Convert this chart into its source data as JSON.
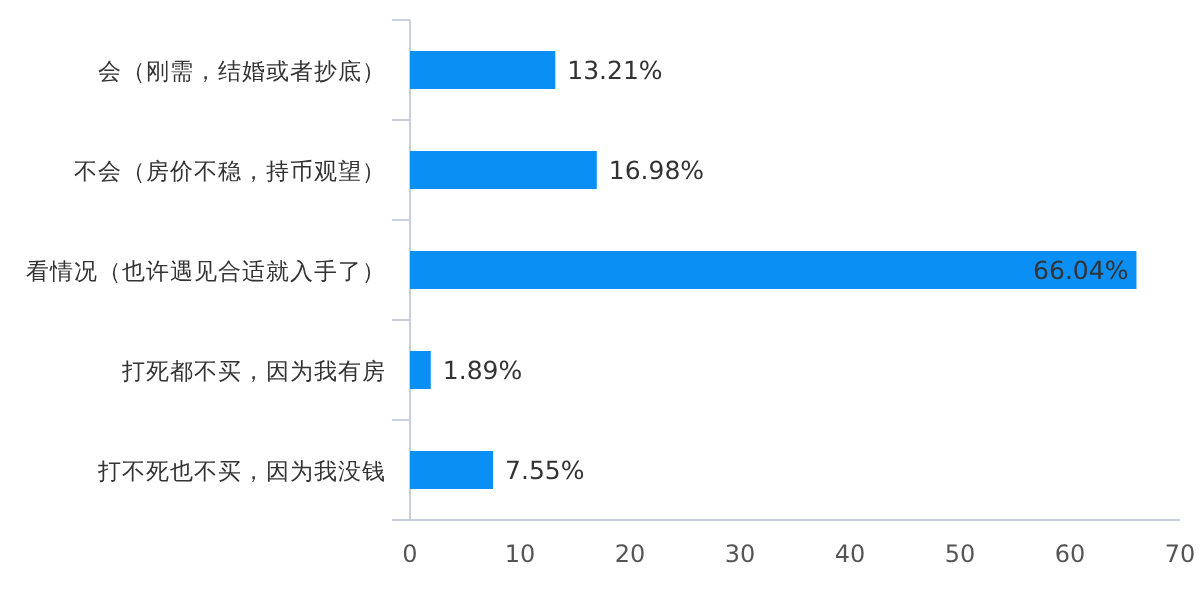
{
  "chart_data": {
    "type": "bar",
    "orientation": "horizontal",
    "color": "#0a8ff5",
    "categories": [
      "会（刚需，结婚或者抄底）",
      "不会（房价不稳，持币观望）",
      "看情况（也许遇见合适就入手了）",
      "打死都不买，因为我有房",
      "打不死也不买，因为我没钱"
    ],
    "values": [
      13.21,
      16.98,
      66.04,
      1.89,
      7.55
    ],
    "value_labels": [
      "13.21%",
      "16.98%",
      "66.04%",
      "1.89%",
      "7.55%"
    ],
    "xlim": [
      0,
      70
    ],
    "xticks": [
      0,
      10,
      20,
      30,
      40,
      50,
      60,
      70
    ],
    "grid": false
  }
}
